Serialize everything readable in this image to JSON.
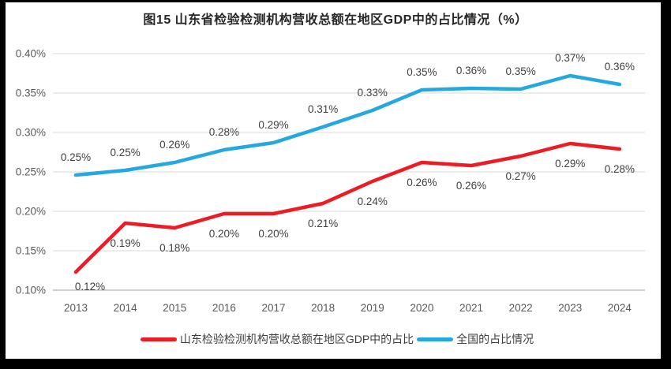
{
  "window": {
    "frame_background": "#000000",
    "card_background": "#ffffff"
  },
  "colors": {
    "grid": "#d9d9d9",
    "axis_line": "#bfbfbf",
    "tick_label": "#595959",
    "data_label": "#404040",
    "title": "#262626",
    "series_red": "#ed1c24",
    "series_blue": "#25a8e0"
  },
  "chart_data": {
    "type": "line",
    "title": "图15  山东省检验检测机构营收总额在地区GDP中的占比情况（%）",
    "categories": [
      "2013",
      "2014",
      "2015",
      "2016",
      "2017",
      "2018",
      "2019",
      "2020",
      "2021",
      "2022",
      "2023",
      "2024"
    ],
    "y_axis": {
      "min": 0.1,
      "max": 0.4,
      "tick_step": 0.05,
      "tick_labels": [
        "0.10%",
        "0.15%",
        "0.20%",
        "0.25%",
        "0.30%",
        "0.35%",
        "0.40%"
      ],
      "unit": "%"
    },
    "grid": true,
    "legend_position": "bottom",
    "series": [
      {
        "id": "shandong-gdp-share",
        "name": "山东检验检测机构营收总额在地区GDP中的占比",
        "color": "#ed1c24",
        "label_side": "below",
        "values": [
          0.12,
          0.19,
          0.18,
          0.2,
          0.2,
          0.21,
          0.24,
          0.26,
          0.26,
          0.27,
          0.29,
          0.28
        ],
        "labels": [
          "0.12%",
          "0.19%",
          "0.18%",
          "0.20%",
          "0.20%",
          "0.21%",
          "0.24%",
          "0.26%",
          "0.26%",
          "0.27%",
          "0.29%",
          "0.28%"
        ],
        "plot_values": [
          0.123,
          0.185,
          0.179,
          0.197,
          0.197,
          0.21,
          0.238,
          0.262,
          0.258,
          0.27,
          0.286,
          0.279
        ],
        "label_offsets": {
          "0": [
            18,
            -7
          ]
        }
      },
      {
        "id": "national-share",
        "name": "全国的占比情况",
        "color": "#25a8e0",
        "label_side": "above",
        "values": [
          0.25,
          0.25,
          0.26,
          0.28,
          0.29,
          0.31,
          0.33,
          0.35,
          0.36,
          0.35,
          0.37,
          0.36
        ],
        "labels": [
          "0.25%",
          "0.25%",
          "0.26%",
          "0.28%",
          "0.29%",
          "0.31%",
          "0.33%",
          "0.35%",
          "0.36%",
          "0.35%",
          "0.37%",
          "0.36%"
        ],
        "plot_values": [
          0.246,
          0.252,
          0.262,
          0.278,
          0.287,
          0.307,
          0.328,
          0.354,
          0.356,
          0.355,
          0.372,
          0.361
        ],
        "label_offsets": {}
      }
    ]
  }
}
